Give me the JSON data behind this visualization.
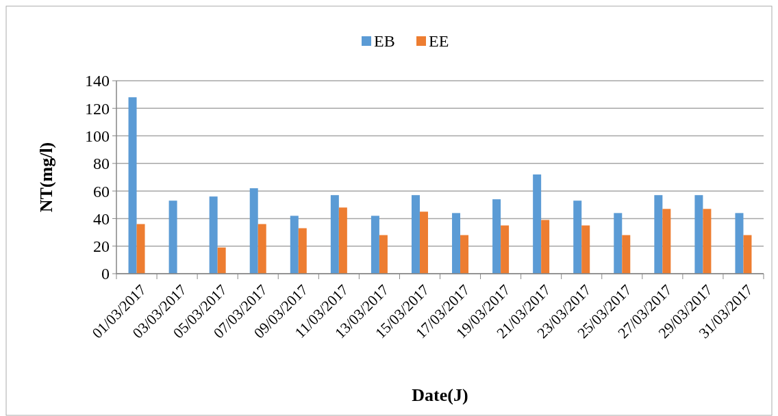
{
  "chart_data": {
    "type": "bar",
    "xlabel": "Date(J)",
    "ylabel": "NT(mg/l)",
    "categories": [
      "01/03/2017",
      "03/03/2017",
      "05/03/2017",
      "07/03/2017",
      "09/03/2017",
      "11/03/2017",
      "13/03/2017",
      "15/03/2017",
      "17/03/2017",
      "19/03/2017",
      "21/03/2017",
      "23/03/2017",
      "25/03/2017",
      "27/03/2017",
      "29/03/2017",
      "31/03/2017"
    ],
    "series": [
      {
        "name": "EB",
        "color": "#5b9bd5",
        "values": [
          128,
          53,
          56,
          62,
          42,
          57,
          42,
          57,
          44,
          54,
          72,
          53,
          44,
          57,
          57,
          44
        ]
      },
      {
        "name": "EE",
        "color": "#ed7d31",
        "values": [
          36,
          0,
          19,
          36,
          33,
          48,
          28,
          45,
          28,
          35,
          39,
          35,
          28,
          47,
          47,
          28
        ]
      }
    ],
    "ylim": [
      0,
      140
    ],
    "yticks": [
      0,
      20,
      40,
      60,
      80,
      100,
      120,
      140
    ],
    "grid": "y",
    "legend": "top"
  }
}
